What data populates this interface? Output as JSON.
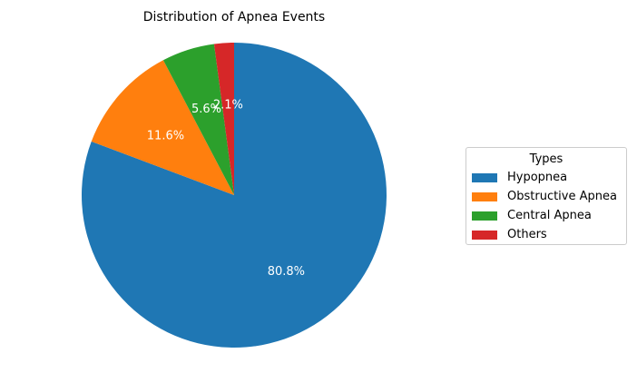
{
  "chart_data": {
    "type": "pie",
    "title": "Distribution of Apnea Events",
    "labels": [
      "Hypopnea",
      "Obstructive Apnea",
      "Central Apnea",
      "Others"
    ],
    "values": [
      80.8,
      11.6,
      5.6,
      2.1
    ],
    "value_labels": [
      "80.8%",
      "11.6%",
      "5.6%",
      "2.1%"
    ],
    "colors": [
      "#1f77b4",
      "#ff7f0e",
      "#2ca02c",
      "#d62728"
    ],
    "start_angle": 90,
    "direction": "clockwise",
    "legend": {
      "title": "Types",
      "placement": "right"
    }
  }
}
